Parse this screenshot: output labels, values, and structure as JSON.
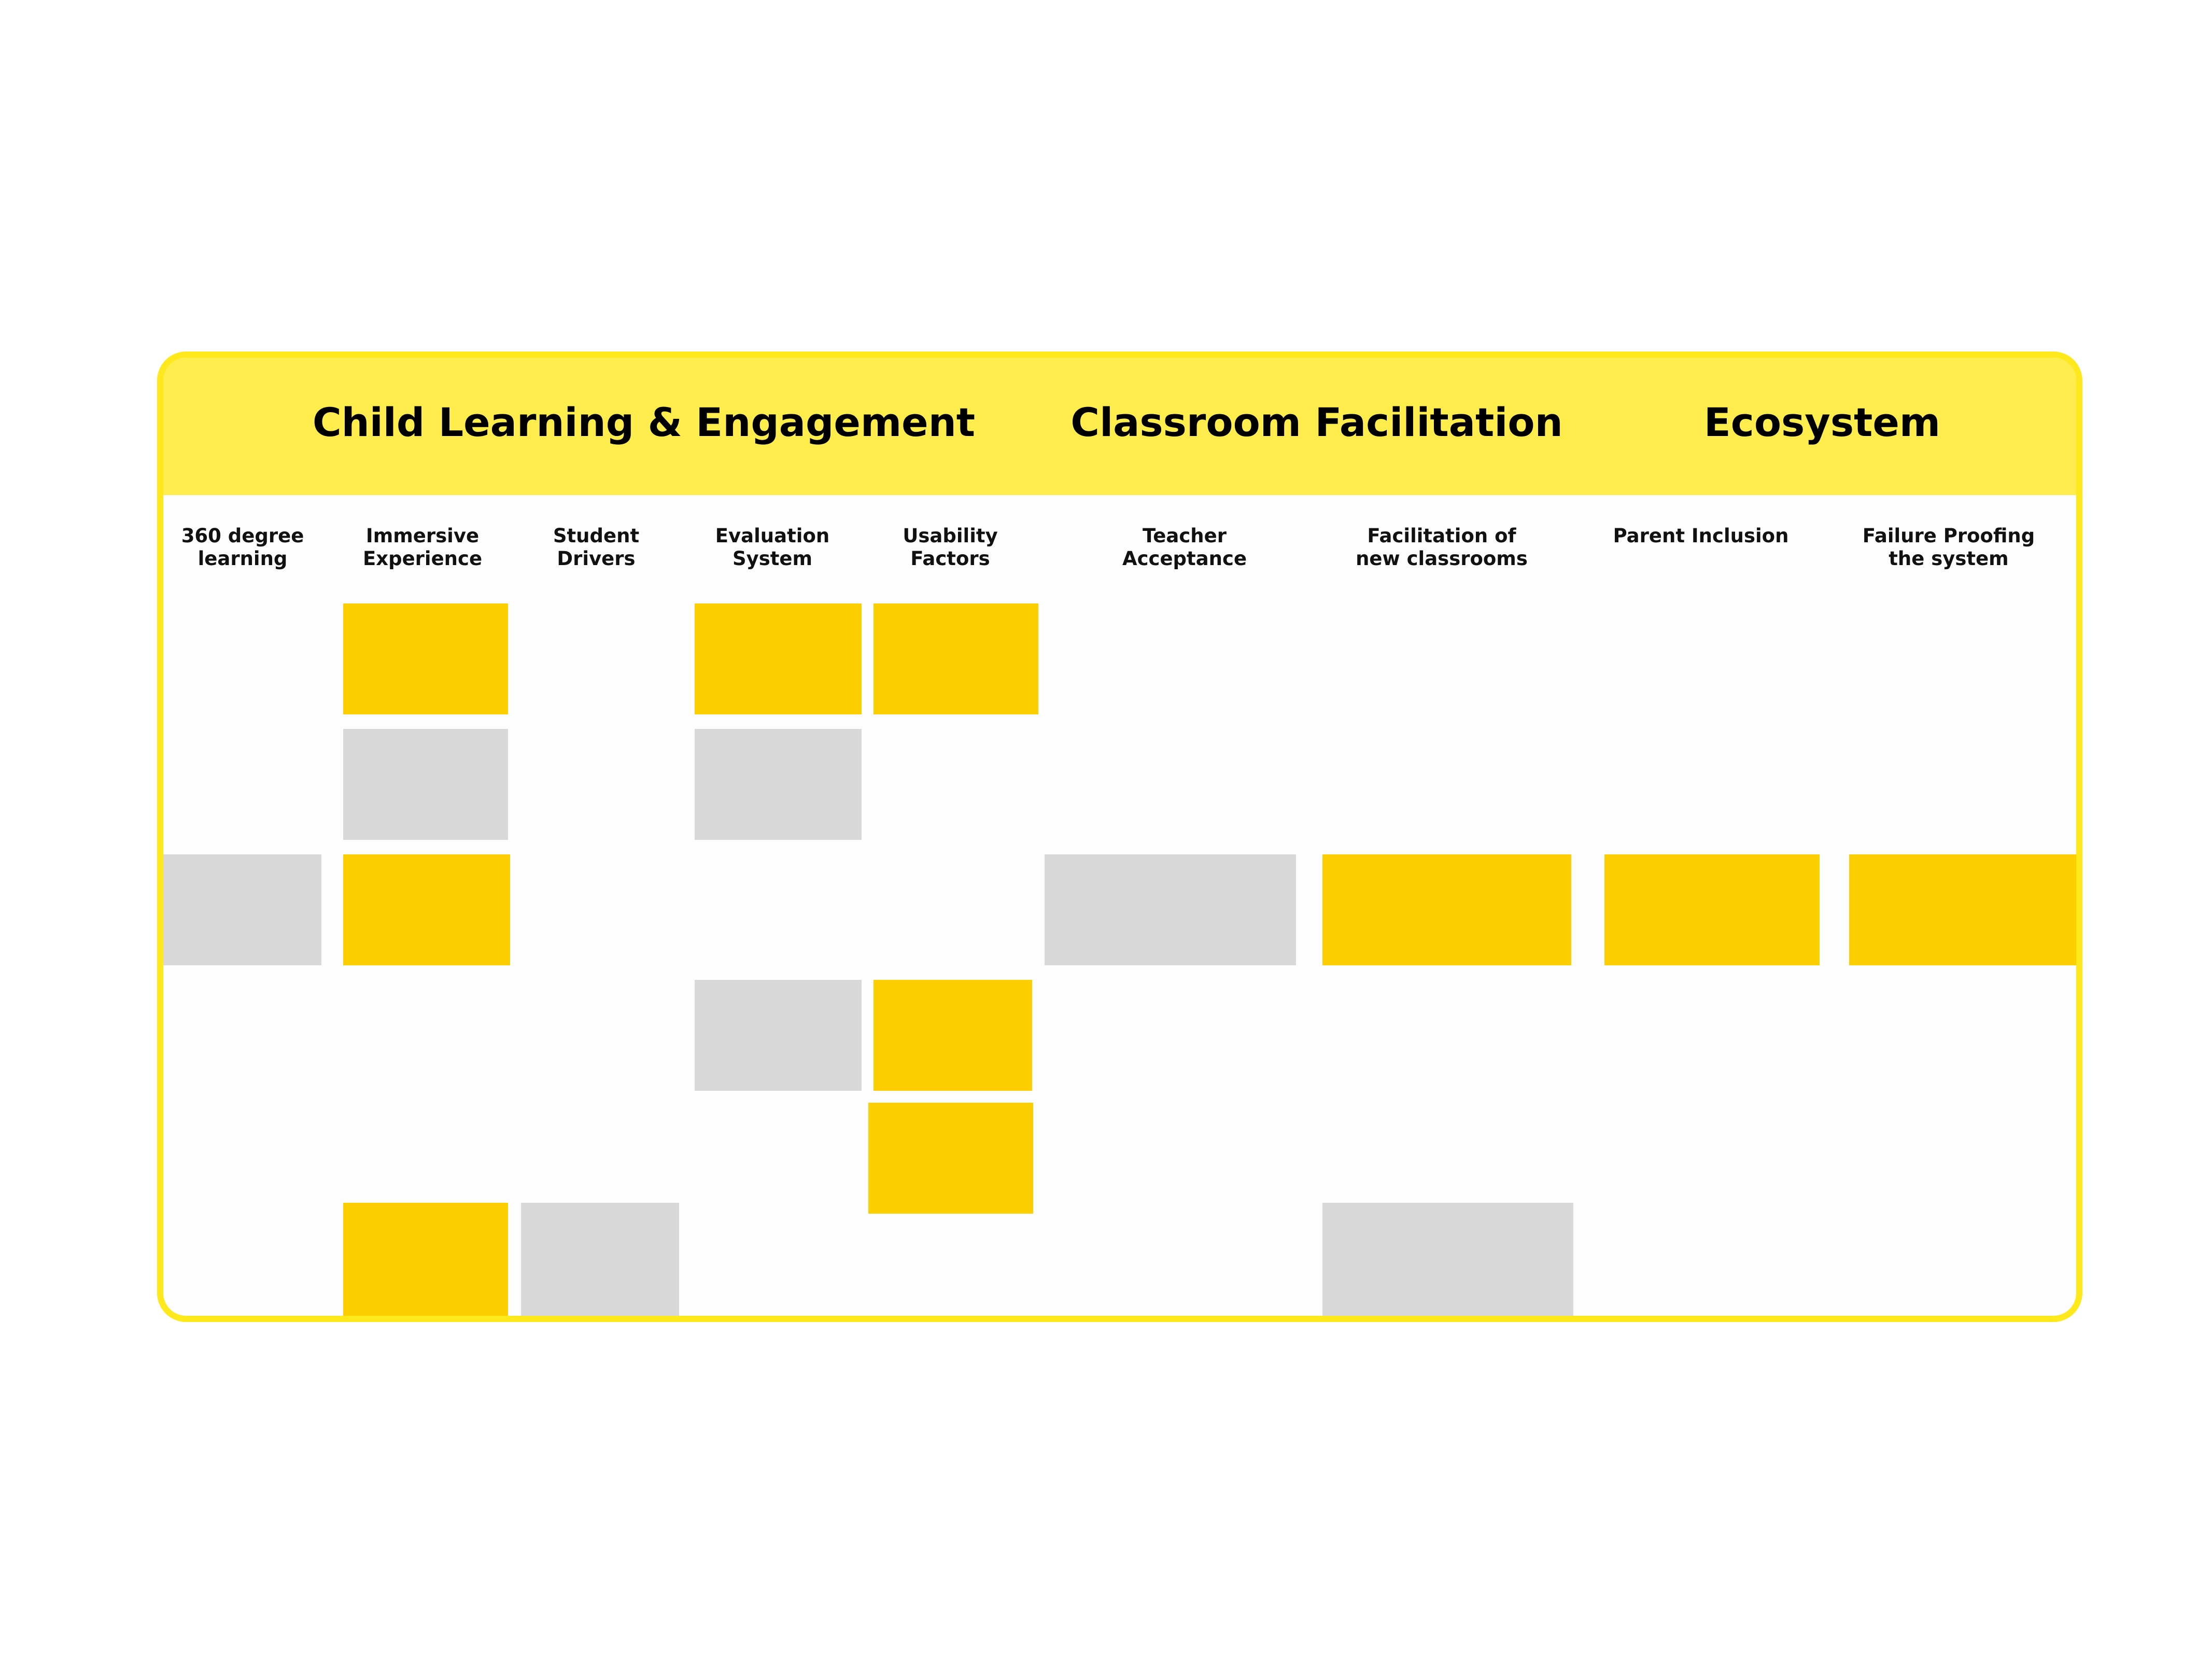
{
  "colors": {
    "frame": "#ffe81c",
    "header": "#ffed4d",
    "note_yellow": "#fdcf00",
    "note_grey": "#d7d8d7"
  },
  "groups": [
    {
      "title": "Child Learning & Engagement"
    },
    {
      "title": "Classroom Facilitation"
    },
    {
      "title": "Ecosystem"
    }
  ],
  "columns": [
    {
      "label": "360 degree\nlearning"
    },
    {
      "label": "Immersive\nExperience"
    },
    {
      "label": "Student\nDrivers"
    },
    {
      "label": "Evaluation\nSystem"
    },
    {
      "label": "Usability\nFactors"
    },
    {
      "label": "Teacher\nAcceptance"
    },
    {
      "label": "Facilitation of\nnew classrooms"
    },
    {
      "label": "Parent Inclusion"
    },
    {
      "label": "Failure Proofing\nthe system"
    }
  ],
  "notes": [
    {
      "column": "Immersive Experience",
      "row": 1,
      "color": "yellow"
    },
    {
      "column": "Evaluation System",
      "row": 1,
      "color": "yellow"
    },
    {
      "column": "Usability Factors",
      "row": 1,
      "color": "yellow"
    },
    {
      "column": "Immersive Experience",
      "row": 2,
      "color": "grey"
    },
    {
      "column": "Evaluation System",
      "row": 2,
      "color": "grey"
    },
    {
      "column": "360 degree learning",
      "row": 3,
      "color": "grey"
    },
    {
      "column": "Immersive Experience",
      "row": 3,
      "color": "yellow"
    },
    {
      "column": "Teacher Acceptance",
      "row": 3,
      "color": "grey"
    },
    {
      "column": "Facilitation of new classrooms",
      "row": 3,
      "color": "yellow"
    },
    {
      "column": "Parent Inclusion",
      "row": 3,
      "color": "yellow"
    },
    {
      "column": "Failure Proofing the system",
      "row": 3,
      "color": "yellow"
    },
    {
      "column": "Evaluation System",
      "row": 4,
      "color": "grey"
    },
    {
      "column": "Usability Factors",
      "row": 4,
      "color": "yellow"
    },
    {
      "column": "Usability Factors",
      "row": 5,
      "color": "yellow"
    },
    {
      "column": "Immersive Experience",
      "row": 6,
      "color": "yellow"
    },
    {
      "column": "Student Drivers",
      "row": 6,
      "color": "grey"
    },
    {
      "column": "Facilitation of new classrooms",
      "row": 6,
      "color": "grey"
    }
  ]
}
